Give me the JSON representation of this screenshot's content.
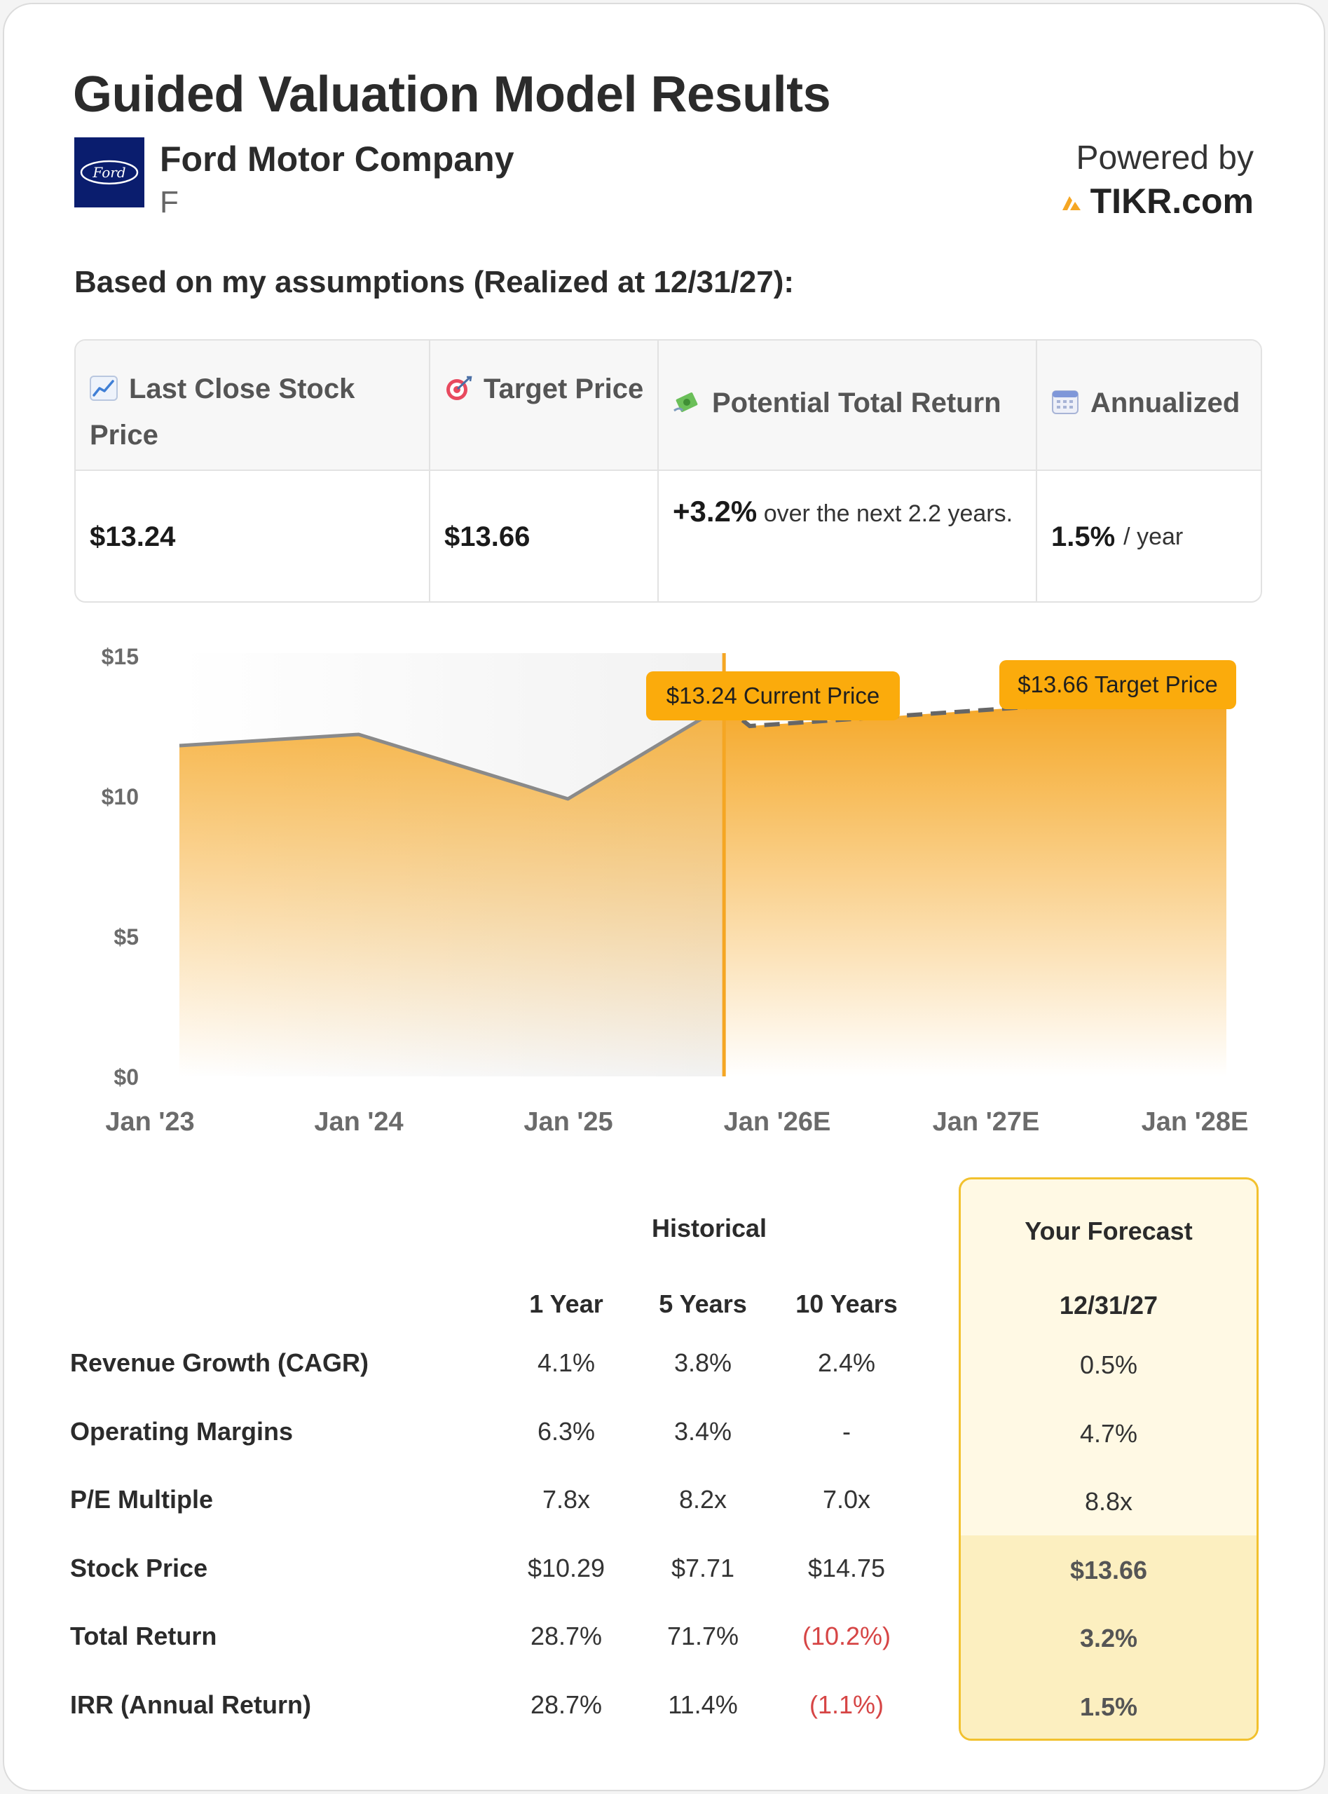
{
  "title": "Guided Valuation Model Results",
  "company": {
    "name": "Ford Motor Company",
    "ticker": "F",
    "logo_text": "Ford"
  },
  "powered": {
    "label": "Powered by",
    "brand": "TIKR.com"
  },
  "subtitle": "Based on my assumptions (Realized at 12/31/27):",
  "summary": {
    "last_close": {
      "icon": "chart-increasing-icon",
      "label": "Last Close Stock Price",
      "value": "$13.24"
    },
    "target": {
      "icon": "target-icon",
      "label": "Target Price",
      "value": "$13.66"
    },
    "potential": {
      "icon": "money-wings-icon",
      "label": "Potential Total Return",
      "value": "+3.2%",
      "suffix": "over the next 2.2 years."
    },
    "annualized": {
      "icon": "calendar-icon",
      "label": "Annualized",
      "value": "1.5%",
      "suffix": "/ year"
    }
  },
  "chart_data": {
    "type": "area",
    "x": [
      "Jan '23",
      "Jan '24",
      "Jan '25",
      "Jan '26E",
      "Jan '27E",
      "Jan '28E"
    ],
    "historical": [
      {
        "date": "2023-01-01",
        "value": 11.8
      },
      {
        "date": "2024-01-01",
        "value": 12.2
      },
      {
        "date": "2025-01-01",
        "value": 9.9
      },
      {
        "date": "2025-10-01",
        "value": 13.24
      }
    ],
    "forecast": [
      {
        "date": "2025-10-01",
        "value": 13.24
      },
      {
        "date": "2025-11-15",
        "value": 12.5
      },
      {
        "date": "2027-12-31",
        "value": 13.66
      }
    ],
    "yticks": [
      "$0",
      "$5",
      "$10",
      "$15"
    ],
    "ylim": [
      0,
      15
    ],
    "annotations": [
      {
        "label": "$13.24 Current Price",
        "value": 13.24
      },
      {
        "label": "$13.66 Target Price",
        "value": 13.66
      }
    ],
    "colors": {
      "fill": "#f5a623",
      "line": "#8a8a8a",
      "marker": "#f5a623",
      "label_bg": "#fbab0c"
    }
  },
  "metrics": {
    "historical_label": "Historical",
    "forecast_label": "Your Forecast",
    "columns": [
      "1 Year",
      "5 Years",
      "10 Years"
    ],
    "forecast_date": "12/31/27",
    "rows": [
      {
        "label": "Revenue Growth (CAGR)",
        "values": [
          "4.1%",
          "3.8%",
          "2.4%"
        ],
        "forecast": "0.5%"
      },
      {
        "label": "Operating Margins",
        "values": [
          "6.3%",
          "3.4%",
          "-"
        ],
        "forecast": "4.7%"
      },
      {
        "label": "P/E Multiple",
        "values": [
          "7.8x",
          "8.2x",
          "7.0x"
        ],
        "forecast": "8.8x"
      },
      {
        "label": "Stock Price",
        "values": [
          "$10.29",
          "$7.71",
          "$14.75"
        ],
        "forecast": "$13.66"
      },
      {
        "label": "Total Return",
        "values": [
          "28.7%",
          "71.7%",
          "(10.2%)"
        ],
        "forecast": "3.2%"
      },
      {
        "label": "IRR (Annual Return)",
        "values": [
          "28.7%",
          "11.4%",
          "(1.1%)"
        ],
        "forecast": "1.5%"
      }
    ]
  }
}
